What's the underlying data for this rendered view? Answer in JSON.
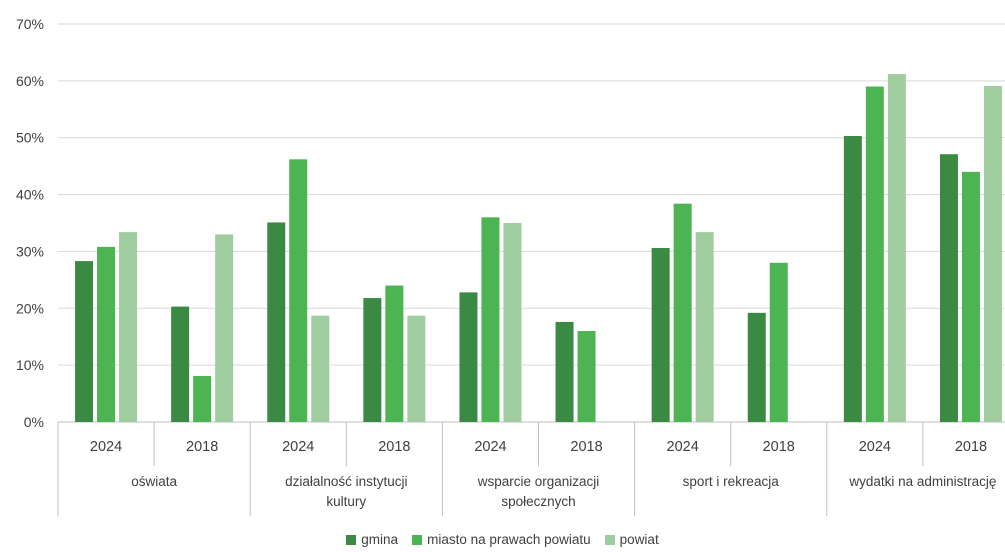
{
  "chart_data": {
    "type": "bar",
    "y_ticks": [
      "0%",
      "10%",
      "20%",
      "30%",
      "40%",
      "50%",
      "60%",
      "70%"
    ],
    "ylim": [
      0,
      70
    ],
    "grid": true,
    "legend_position": "bottom",
    "groups": [
      {
        "label_lines": [
          "oświata"
        ],
        "years": [
          "2024",
          "2018"
        ]
      },
      {
        "label_lines": [
          "działalność instytucji",
          "kultury"
        ],
        "years": [
          "2024",
          "2018"
        ]
      },
      {
        "label_lines": [
          "wsparcie organizacji",
          "społecznych"
        ],
        "years": [
          "2024",
          "2018"
        ]
      },
      {
        "label_lines": [
          "sport i rekreacja"
        ],
        "years": [
          "2024",
          "2018"
        ]
      },
      {
        "label_lines": [
          "wydatki na administrację"
        ],
        "years": [
          "2024",
          "2018"
        ]
      }
    ],
    "series": [
      {
        "name": "gmina",
        "color": "#3a8a43",
        "values": [
          28.3,
          20.3,
          35.1,
          21.8,
          22.8,
          17.6,
          30.6,
          19.2,
          50.3,
          47.1
        ]
      },
      {
        "name": "miasto na prawach powiatu",
        "color": "#4cb452",
        "values": [
          30.8,
          8.1,
          46.2,
          24.0,
          36.0,
          16.0,
          38.4,
          28.0,
          59.0,
          44.0
        ]
      },
      {
        "name": "powiat",
        "color": "#9fcd9f",
        "values": [
          33.4,
          33.0,
          18.7,
          18.7,
          35.0,
          null,
          33.4,
          null,
          61.2,
          59.1
        ]
      }
    ]
  }
}
